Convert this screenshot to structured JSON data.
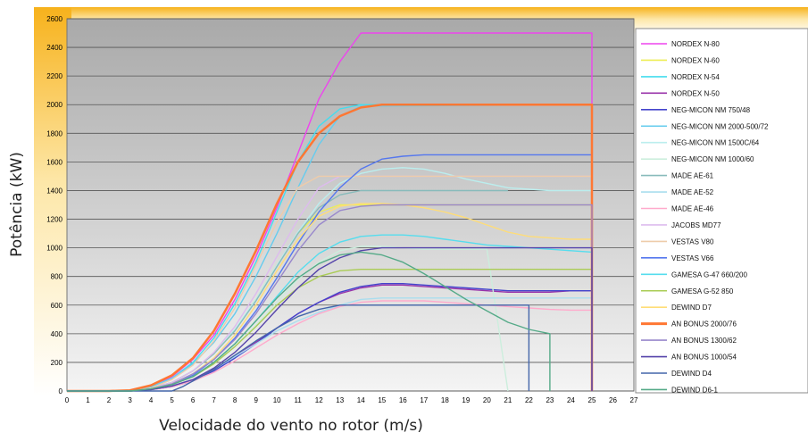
{
  "chart_data": {
    "type": "line",
    "title": "",
    "xlabel": "Velocidade do vento no rotor (m/s)",
    "ylabel": "Potência (kW)",
    "xlim": [
      0,
      27
    ],
    "ylim": [
      0,
      2600
    ],
    "xticks": [
      0,
      1,
      2,
      3,
      4,
      5,
      6,
      7,
      8,
      9,
      10,
      11,
      12,
      13,
      14,
      15,
      16,
      17,
      18,
      19,
      20,
      21,
      22,
      23,
      24,
      25,
      26,
      27
    ],
    "yticks": [
      0,
      200,
      400,
      600,
      800,
      1000,
      1200,
      1400,
      1600,
      1800,
      2000,
      2200,
      2400,
      2600
    ],
    "grid": "horizontal",
    "legend_position": "right",
    "series": [
      {
        "name": "NORDEX N-80",
        "color": "#ee44ee",
        "x": [
          0,
          2,
          3,
          4,
          5,
          6,
          7,
          8,
          9,
          10,
          11,
          12,
          13,
          14,
          15,
          16,
          17,
          18,
          19,
          20,
          21,
          22,
          23,
          24,
          25,
          25
        ],
        "y": [
          0,
          0,
          5,
          30,
          100,
          220,
          390,
          640,
          940,
          1280,
          1660,
          2040,
          2300,
          2500,
          2500,
          2500,
          2500,
          2500,
          2500,
          2500,
          2500,
          2500,
          2500,
          2500,
          2500,
          0
        ]
      },
      {
        "name": "NORDEX N-60",
        "color": "#eeee55",
        "x": [
          0,
          3,
          4,
          5,
          6,
          7,
          8,
          9,
          10,
          11,
          12,
          13,
          14,
          15,
          16,
          17,
          18,
          19,
          20,
          21,
          22,
          23,
          24,
          25,
          25
        ],
        "y": [
          0,
          0,
          20,
          60,
          140,
          260,
          420,
          640,
          880,
          1100,
          1250,
          1300,
          1300,
          1300,
          1300,
          1300,
          1300,
          1300,
          1300,
          1300,
          1300,
          1300,
          1300,
          1300,
          0
        ]
      },
      {
        "name": "NORDEX N-54",
        "color": "#44ddee",
        "x": [
          0,
          3,
          4,
          5,
          6,
          7,
          8,
          9,
          10,
          11,
          12,
          13,
          14,
          25,
          25
        ],
        "y": [
          0,
          0,
          30,
          90,
          200,
          370,
          610,
          900,
          1250,
          1600,
          1850,
          1970,
          2000,
          2000,
          0
        ]
      },
      {
        "name": "NORDEX N-50",
        "color": "#9933aa",
        "x": [
          0,
          3,
          4,
          5,
          6,
          7,
          8,
          9,
          10,
          11,
          12,
          13,
          14,
          15,
          16,
          17,
          18,
          19,
          20,
          21,
          22,
          23,
          24,
          25,
          25
        ],
        "y": [
          0,
          0,
          10,
          35,
          80,
          150,
          240,
          340,
          440,
          540,
          620,
          680,
          720,
          740,
          740,
          730,
          720,
          710,
          700,
          690,
          690,
          690,
          700,
          700,
          0
        ]
      },
      {
        "name": "NEG-MICON NM 750/48",
        "color": "#4444cc",
        "x": [
          0,
          3,
          4,
          5,
          6,
          7,
          8,
          9,
          10,
          11,
          12,
          13,
          14,
          15,
          16,
          17,
          18,
          19,
          20,
          21,
          22,
          23,
          24,
          25,
          25
        ],
        "y": [
          0,
          0,
          10,
          30,
          70,
          140,
          230,
          330,
          440,
          540,
          620,
          690,
          730,
          750,
          750,
          740,
          730,
          720,
          710,
          700,
          700,
          700,
          700,
          700,
          0
        ]
      },
      {
        "name": "NEG-MICON NM 2000-500/72",
        "color": "#66ccee",
        "x": [
          0,
          3,
          4,
          5,
          6,
          7,
          8,
          9,
          10,
          11,
          12,
          13,
          14,
          25,
          25
        ],
        "y": [
          0,
          0,
          30,
          90,
          190,
          340,
          540,
          800,
          1100,
          1420,
          1720,
          1920,
          1990,
          2000,
          0
        ]
      },
      {
        "name": "NEG-MICON NM 1500C/64",
        "color": "#bbeeee",
        "x": [
          0,
          3,
          4,
          5,
          6,
          7,
          8,
          9,
          10,
          11,
          12,
          13,
          14,
          15,
          16,
          17,
          18,
          19,
          20,
          21,
          22,
          23,
          24,
          25,
          25
        ],
        "y": [
          0,
          0,
          20,
          60,
          140,
          260,
          430,
          640,
          880,
          1110,
          1310,
          1450,
          1520,
          1550,
          1560,
          1550,
          1520,
          1480,
          1450,
          1420,
          1410,
          1400,
          1400,
          1400,
          0
        ]
      },
      {
        "name": "NEG-MICON NM 1000/60",
        "color": "#cceedd",
        "x": [
          0,
          3,
          4,
          5,
          6,
          7,
          8,
          9,
          10,
          11,
          12,
          13,
          14,
          15,
          16,
          17,
          18,
          19,
          20,
          20.5,
          21
        ],
        "y": [
          0,
          0,
          15,
          45,
          100,
          190,
          310,
          460,
          620,
          780,
          900,
          980,
          1010,
          1010,
          1000,
          990,
          990,
          990,
          990,
          500,
          0
        ]
      },
      {
        "name": "MADE AE-61",
        "color": "#88bbbb",
        "x": [
          0,
          3,
          4,
          5,
          6,
          7,
          8,
          9,
          10,
          11,
          12,
          13,
          14,
          15,
          16,
          17,
          18,
          19,
          20,
          21
        ],
        "y": [
          0,
          0,
          20,
          60,
          140,
          260,
          420,
          630,
          870,
          1100,
          1280,
          1370,
          1400,
          1400,
          1400,
          1400,
          1400,
          1400,
          1400,
          1400
        ]
      },
      {
        "name": "MADE AE-52",
        "color": "#aaddee",
        "x": [
          0,
          3,
          4,
          5,
          6,
          7,
          8,
          9,
          10,
          11,
          12,
          13,
          14,
          15,
          16,
          17,
          18,
          19,
          20,
          21,
          22,
          23,
          24,
          25,
          25
        ],
        "y": [
          0,
          0,
          10,
          35,
          80,
          150,
          240,
          330,
          420,
          490,
          550,
          600,
          640,
          650,
          650,
          650,
          650,
          650,
          650,
          650,
          650,
          650,
          650,
          650,
          0
        ]
      },
      {
        "name": "MADE AE-46",
        "color": "#ffaacc",
        "x": [
          0,
          3,
          4,
          5,
          6,
          7,
          8,
          9,
          10,
          11,
          12,
          13,
          14,
          15,
          16,
          17,
          18,
          19,
          20,
          21,
          22,
          23,
          24,
          25
        ],
        "y": [
          0,
          0,
          10,
          30,
          70,
          130,
          210,
          300,
          390,
          470,
          540,
          590,
          620,
          630,
          630,
          630,
          620,
          610,
          600,
          590,
          580,
          570,
          565,
          565
        ]
      },
      {
        "name": "JACOBS MD77",
        "color": "#ddbbee",
        "x": [
          0,
          3,
          4,
          5,
          6,
          7,
          8,
          9,
          10,
          11,
          12,
          13,
          14,
          15,
          16,
          17,
          18,
          19,
          20,
          21,
          22,
          23,
          24,
          25,
          25
        ],
        "y": [
          0,
          0,
          20,
          60,
          140,
          270,
          450,
          680,
          940,
          1200,
          1420,
          1500,
          1500,
          1500,
          1500,
          1500,
          1500,
          1500,
          1500,
          1500,
          1500,
          1500,
          1500,
          1500,
          0
        ]
      },
      {
        "name": "VESTAS V80",
        "color": "#eeccaa",
        "x": [
          0,
          3,
          4,
          5,
          6,
          7,
          8,
          9,
          10,
          11,
          12,
          13,
          14,
          25,
          25
        ],
        "y": [
          0,
          0,
          20,
          80,
          180,
          350,
          580,
          880,
          1180,
          1420,
          1500,
          1500,
          1500,
          1500,
          0
        ]
      },
      {
        "name": "VESTAS V66",
        "color": "#5577ee",
        "x": [
          0,
          3,
          4,
          5,
          6,
          7,
          8,
          9,
          10,
          11,
          12,
          13,
          14,
          15,
          16,
          17,
          18,
          19,
          20,
          21,
          22,
          23,
          24,
          25,
          25
        ],
        "y": [
          0,
          0,
          15,
          50,
          110,
          220,
          370,
          560,
          790,
          1030,
          1250,
          1420,
          1550,
          1620,
          1640,
          1650,
          1650,
          1650,
          1650,
          1650,
          1650,
          1650,
          1650,
          1650,
          0
        ]
      },
      {
        "name": "GAMESA G-47 660/200",
        "color": "#55ddee",
        "x": [
          0,
          3,
          4,
          5,
          6,
          7,
          8,
          9,
          10,
          11,
          12,
          13,
          14,
          15,
          16,
          17,
          18,
          19,
          20,
          21,
          22,
          23,
          24,
          25,
          25
        ],
        "y": [
          0,
          0,
          15,
          45,
          100,
          200,
          330,
          490,
          660,
          830,
          960,
          1040,
          1080,
          1090,
          1090,
          1080,
          1060,
          1040,
          1020,
          1010,
          1000,
          990,
          980,
          970,
          0
        ]
      },
      {
        "name": "GAMESA G-52 850",
        "color": "#aacc55",
        "x": [
          0,
          3,
          4,
          5,
          6,
          7,
          8,
          9,
          10,
          11,
          12,
          13,
          14,
          15,
          16,
          17,
          18,
          19,
          20,
          21,
          22,
          23,
          24,
          25,
          25
        ],
        "y": [
          0,
          0,
          15,
          45,
          100,
          190,
          310,
          450,
          600,
          720,
          800,
          840,
          850,
          850,
          850,
          850,
          850,
          850,
          850,
          850,
          850,
          850,
          850,
          850,
          0
        ]
      },
      {
        "name": "DEWIND D7",
        "color": "#ffdd77",
        "x": [
          0,
          3,
          4,
          5,
          6,
          7,
          8,
          9,
          10,
          11,
          12,
          13,
          14,
          15,
          16,
          17,
          18,
          19,
          20,
          21,
          22,
          23,
          24,
          25,
          25
        ],
        "y": [
          0,
          0,
          15,
          50,
          120,
          230,
          390,
          600,
          840,
          1060,
          1220,
          1290,
          1310,
          1310,
          1300,
          1280,
          1250,
          1210,
          1160,
          1110,
          1080,
          1070,
          1060,
          1060,
          0
        ]
      },
      {
        "name": "AN BONUS 2000/76",
        "color": "#ff7733",
        "x": [
          0,
          2,
          3,
          4,
          5,
          6,
          7,
          8,
          9,
          10,
          11,
          12,
          13,
          14,
          15,
          16,
          17,
          18,
          19,
          20,
          21,
          22,
          23,
          24,
          25,
          25
        ],
        "y": [
          0,
          0,
          5,
          40,
          110,
          230,
          420,
          680,
          980,
          1310,
          1600,
          1800,
          1920,
          1980,
          2000,
          2000,
          2000,
          2000,
          2000,
          2000,
          2000,
          2000,
          2000,
          2000,
          2000,
          0
        ]
      },
      {
        "name": "AN BONUS 1300/62",
        "color": "#9988cc",
        "x": [
          0,
          3,
          4,
          5,
          6,
          7,
          8,
          9,
          10,
          11,
          12,
          13,
          14,
          15,
          16,
          17,
          18,
          19,
          20,
          21,
          22,
          23,
          24,
          25,
          25
        ],
        "y": [
          0,
          0,
          15,
          50,
          120,
          220,
          360,
          540,
          760,
          980,
          1160,
          1260,
          1290,
          1300,
          1300,
          1300,
          1300,
          1300,
          1300,
          1300,
          1300,
          1300,
          1300,
          1300,
          0
        ]
      },
      {
        "name": "AN BONUS 1000/54",
        "color": "#5544aa",
        "x": [
          0,
          3,
          4,
          5,
          6,
          7,
          8,
          9,
          10,
          11,
          12,
          13,
          14,
          15,
          16,
          17,
          18,
          19,
          20,
          21,
          22,
          23,
          24,
          25,
          25
        ],
        "y": [
          0,
          0,
          10,
          35,
          80,
          160,
          270,
          410,
          570,
          720,
          850,
          930,
          980,
          1000,
          1000,
          1000,
          1000,
          1000,
          1000,
          1000,
          1000,
          1000,
          1000,
          1000,
          0
        ]
      },
      {
        "name": "DEWIND D4",
        "color": "#4466aa",
        "x": [
          0,
          5,
          5.5,
          6,
          7,
          8,
          9,
          10,
          11,
          12,
          13,
          14,
          15,
          16,
          17,
          18,
          19,
          20,
          21,
          22,
          22
        ],
        "y": [
          0,
          0,
          30,
          70,
          150,
          250,
          350,
          440,
          520,
          570,
          600,
          600,
          600,
          600,
          600,
          600,
          600,
          600,
          600,
          600,
          0
        ]
      },
      {
        "name": "DEWIND D6-1",
        "color": "#55aa88",
        "x": [
          0,
          3,
          4,
          5,
          6,
          7,
          8,
          9,
          10,
          11,
          12,
          13,
          14,
          15,
          16,
          17,
          18,
          19,
          20,
          21,
          22,
          23,
          23
        ],
        "y": [
          0,
          0,
          15,
          45,
          100,
          200,
          330,
          490,
          650,
          790,
          890,
          950,
          970,
          950,
          900,
          820,
          730,
          640,
          560,
          480,
          430,
          400,
          0
        ]
      }
    ]
  }
}
